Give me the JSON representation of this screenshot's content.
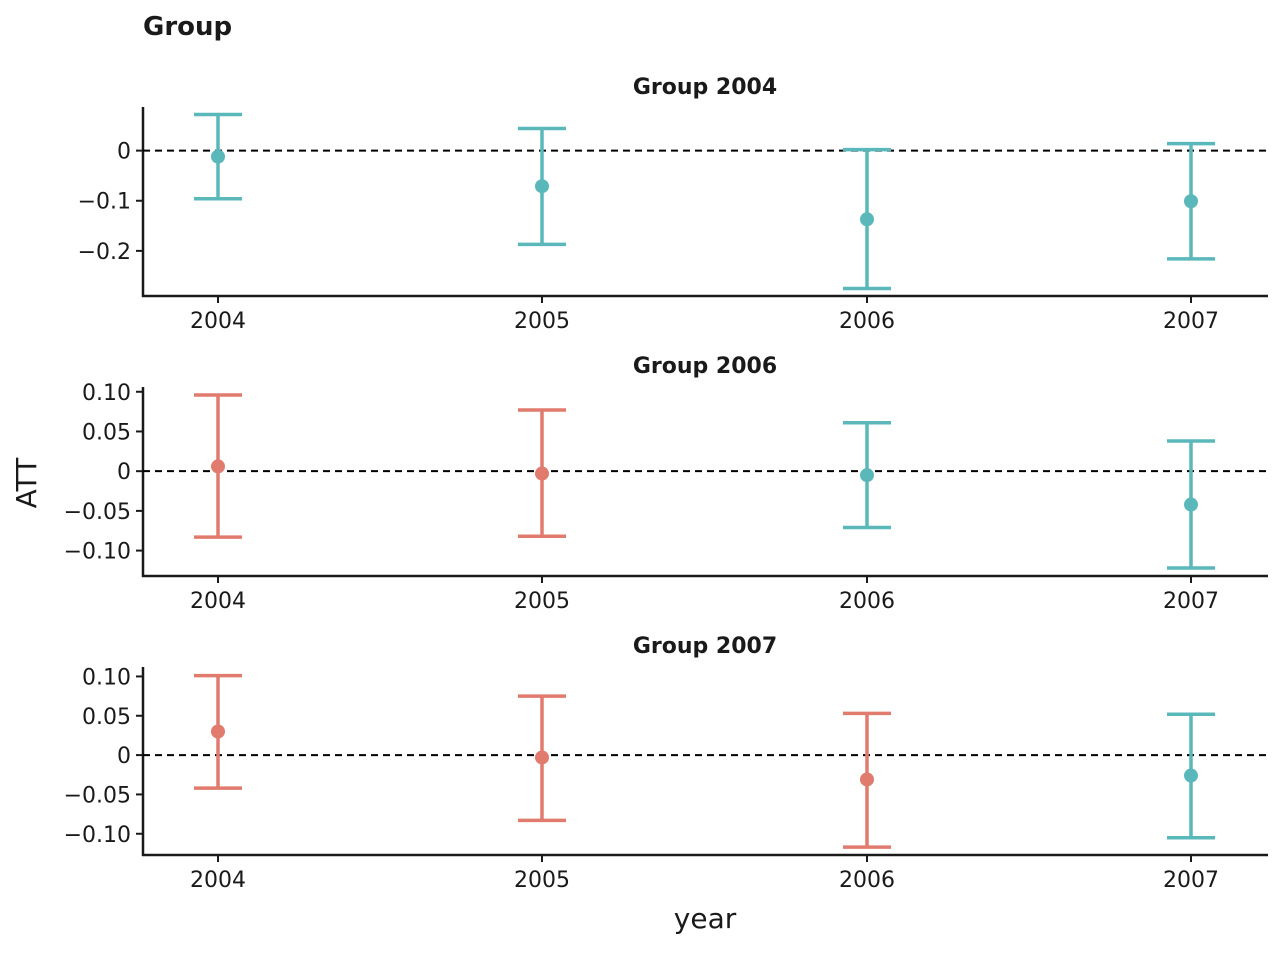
{
  "figure": {
    "title": "Group",
    "xlabel": "year",
    "ylabel": "ATT"
  },
  "colors": {
    "pre": "#e07b6e",
    "post": "#5ab8bb",
    "axis": "#1a1a1a",
    "reference_line": "#000000"
  },
  "chart_data": [
    {
      "type": "errorbar",
      "title": "Group 2004",
      "categories": [
        "2004",
        "2005",
        "2006",
        "2007"
      ],
      "ylim": [
        -0.29,
        0.087
      ],
      "yticks": [
        0,
        -0.1,
        -0.2
      ],
      "ytick_labels": [
        "0",
        "−0.1",
        "−0.2"
      ],
      "reference_line": 0,
      "points": [
        {
          "x": "2004",
          "y": -0.012,
          "lo": -0.096,
          "hi": 0.072,
          "period": "post"
        },
        {
          "x": "2005",
          "y": -0.071,
          "lo": -0.187,
          "hi": 0.044,
          "period": "post"
        },
        {
          "x": "2006",
          "y": -0.137,
          "lo": -0.275,
          "hi": 0.002,
          "period": "post"
        },
        {
          "x": "2007",
          "y": -0.101,
          "lo": -0.216,
          "hi": 0.014,
          "period": "post"
        }
      ]
    },
    {
      "type": "errorbar",
      "title": "Group 2006",
      "categories": [
        "2004",
        "2005",
        "2006",
        "2007"
      ],
      "ylim": [
        -0.132,
        0.106
      ],
      "yticks": [
        0.1,
        0.05,
        0,
        -0.05,
        -0.1
      ],
      "ytick_labels": [
        "0.10",
        "0.05",
        "0",
        "−0.05",
        "−0.10"
      ],
      "reference_line": 0,
      "points": [
        {
          "x": "2004",
          "y": 0.006,
          "lo": -0.083,
          "hi": 0.096,
          "period": "pre"
        },
        {
          "x": "2005",
          "y": -0.003,
          "lo": -0.082,
          "hi": 0.077,
          "period": "pre"
        },
        {
          "x": "2006",
          "y": -0.005,
          "lo": -0.071,
          "hi": 0.061,
          "period": "post"
        },
        {
          "x": "2007",
          "y": -0.042,
          "lo": -0.122,
          "hi": 0.038,
          "period": "post"
        }
      ]
    },
    {
      "type": "errorbar",
      "title": "Group 2007",
      "categories": [
        "2004",
        "2005",
        "2006",
        "2007"
      ],
      "ylim": [
        -0.127,
        0.112
      ],
      "yticks": [
        0.1,
        0.05,
        0,
        -0.05,
        -0.1
      ],
      "ytick_labels": [
        "0.10",
        "0.05",
        "0",
        "−0.05",
        "−0.10"
      ],
      "reference_line": 0,
      "points": [
        {
          "x": "2004",
          "y": 0.03,
          "lo": -0.042,
          "hi": 0.101,
          "period": "pre"
        },
        {
          "x": "2005",
          "y": -0.003,
          "lo": -0.083,
          "hi": 0.075,
          "period": "pre"
        },
        {
          "x": "2006",
          "y": -0.031,
          "lo": -0.117,
          "hi": 0.053,
          "period": "pre"
        },
        {
          "x": "2007",
          "y": -0.026,
          "lo": -0.105,
          "hi": 0.052,
          "period": "post"
        }
      ]
    }
  ]
}
